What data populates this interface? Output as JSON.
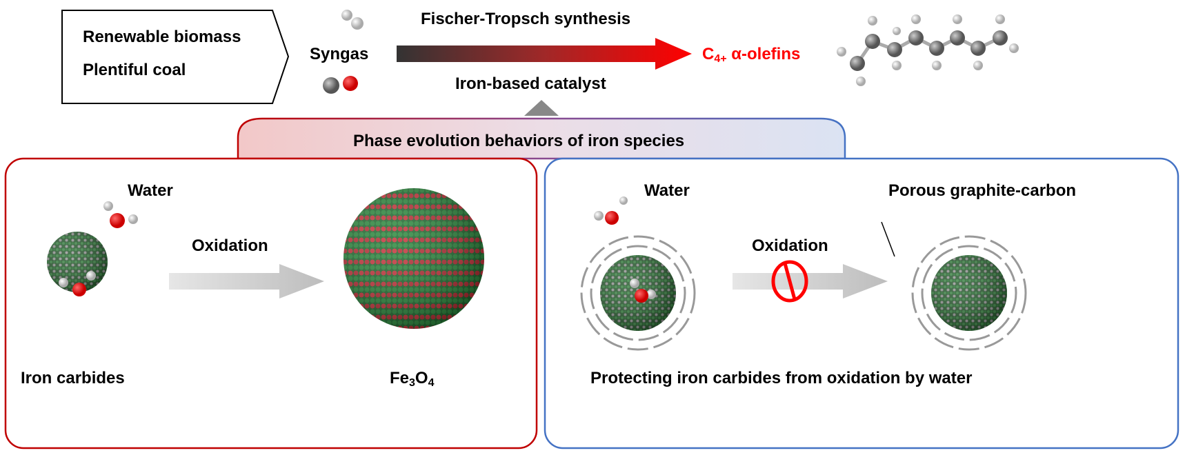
{
  "top": {
    "sources": [
      "Renewable biomass",
      "Plentiful coal"
    ],
    "syngas": "Syngas",
    "process": "Fischer-Tropsch synthesis",
    "catalyst": "Iron-based catalyst",
    "product_main": "C",
    "product_sub": "4+",
    "product_rest": " α-olefins"
  },
  "tab": {
    "title": "Phase evolution behaviors of iron species"
  },
  "left_panel": {
    "water": "Water",
    "oxidation": "Oxidation",
    "start_label": "Iron carbides",
    "end_label_parts": [
      "Fe",
      "3",
      "O",
      "4"
    ]
  },
  "right_panel": {
    "water": "Water",
    "shell_label": "Porous graphite-carbon",
    "oxidation": "Oxidation",
    "caption": "Protecting iron carbides from oxidation by water"
  },
  "colors": {
    "red_panel": "#c00000",
    "blue_panel": "#4472c4",
    "product": "#ff0000",
    "iron_carbide": "#2e6b35",
    "oxide": "#c0303a"
  }
}
